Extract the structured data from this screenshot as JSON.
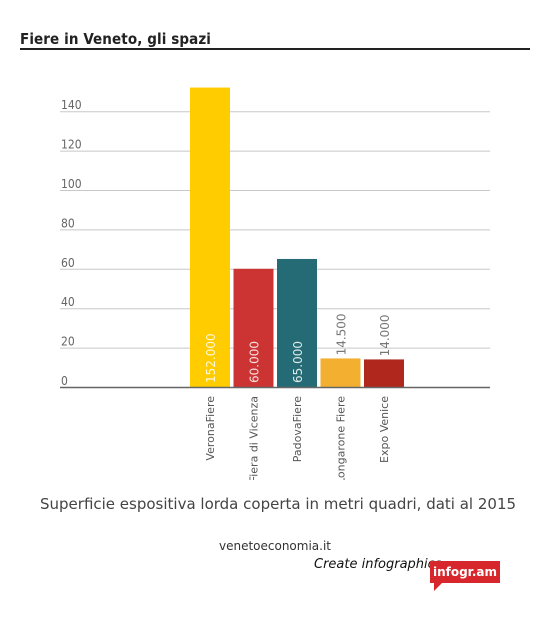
{
  "header": {
    "title": "Fiere in Veneto, gli spazi"
  },
  "chart_data": {
    "type": "bar",
    "title": "Fiere in Veneto, gli spazi",
    "categories": [
      "VeronaFiere",
      "Fiera di Vicenza",
      "PadovaFiere",
      "Longarone Fiere",
      "Expo Venice"
    ],
    "values": [
      152,
      60,
      65,
      14.5,
      14
    ],
    "value_labels": [
      "152.000",
      "60.000",
      "65.000",
      "14.500",
      "14.000"
    ],
    "colors": [
      "#FFCC00",
      "#CC3333",
      "#246B76",
      "#F2AF30",
      "#B0281D"
    ],
    "yticks": [
      "0",
      "20",
      "40",
      "60",
      "80",
      "100",
      "120",
      "140"
    ],
    "ylim": [
      0,
      150
    ],
    "grid": true,
    "xlabel": "",
    "ylabel": ""
  },
  "footer": {
    "caption": "Superficie espositiva lorda coperta in metri quadri, dati al 2015",
    "source": "venetoeconomia.it",
    "cta": "Create infographics",
    "badge": "infogr.am"
  }
}
